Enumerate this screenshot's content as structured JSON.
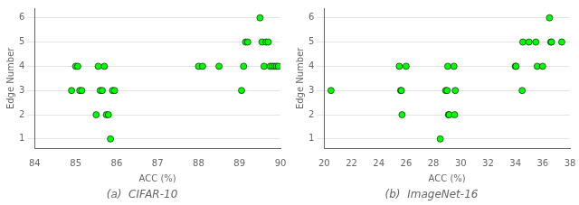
{
  "chart_data": [
    {
      "type": "scatter",
      "title": "(a)  CIFAR-10",
      "xlabel": "ACC (%)",
      "ylabel": "Edge Number",
      "x": [
        84.9,
        85.0,
        85.05,
        85.1,
        85.15,
        85.5,
        85.55,
        85.6,
        85.65,
        85.7,
        85.75,
        85.8,
        85.85,
        85.9,
        85.95,
        88.0,
        88.1,
        88.5,
        89.05,
        89.1,
        89.15,
        89.2,
        89.5,
        89.55,
        89.6,
        89.65,
        89.7,
        89.75,
        89.8,
        89.85,
        89.9,
        89.95
      ],
      "values": [
        3,
        4,
        4,
        3,
        3,
        2,
        4,
        3,
        3,
        4,
        2,
        2,
        1,
        3,
        3,
        4,
        4,
        4,
        3,
        4,
        5,
        5,
        6,
        5,
        4,
        5,
        5,
        4,
        4,
        4,
        4,
        4
      ],
      "color": "#00ff00",
      "xlim": [
        84,
        90
      ],
      "xticks": [
        84,
        85,
        86,
        87,
        88,
        89,
        90
      ],
      "ylim": [
        0.6,
        6.4
      ],
      "yticks": [
        1,
        2,
        3,
        4,
        5,
        6
      ],
      "grid": "y"
    },
    {
      "type": "scatter",
      "title": "(b)  ImageNet-16",
      "xlabel": "ACC (%)",
      "ylabel": "Edge Number",
      "x": [
        20.5,
        25.5,
        25.6,
        25.65,
        25.7,
        26.0,
        28.5,
        28.9,
        29.0,
        29.05,
        29.1,
        29.15,
        29.5,
        29.55,
        29.6,
        34.0,
        34.05,
        34.5,
        34.55,
        35.0,
        35.5,
        35.6,
        36.0,
        36.5,
        36.6,
        36.65,
        37.4
      ],
      "values": [
        3,
        4,
        3,
        3,
        2,
        4,
        1,
        3,
        3,
        4,
        2,
        2,
        4,
        2,
        3,
        4,
        4,
        3,
        5,
        5,
        5,
        4,
        4,
        6,
        5,
        5,
        5
      ],
      "color": "#00ff00",
      "xlim": [
        20,
        38
      ],
      "xticks": [
        20,
        22,
        24,
        26,
        28,
        30,
        32,
        34,
        36,
        38
      ],
      "ylim": [
        0.6,
        6.4
      ],
      "yticks": [
        1,
        2,
        3,
        4,
        5,
        6
      ],
      "grid": "y"
    }
  ]
}
